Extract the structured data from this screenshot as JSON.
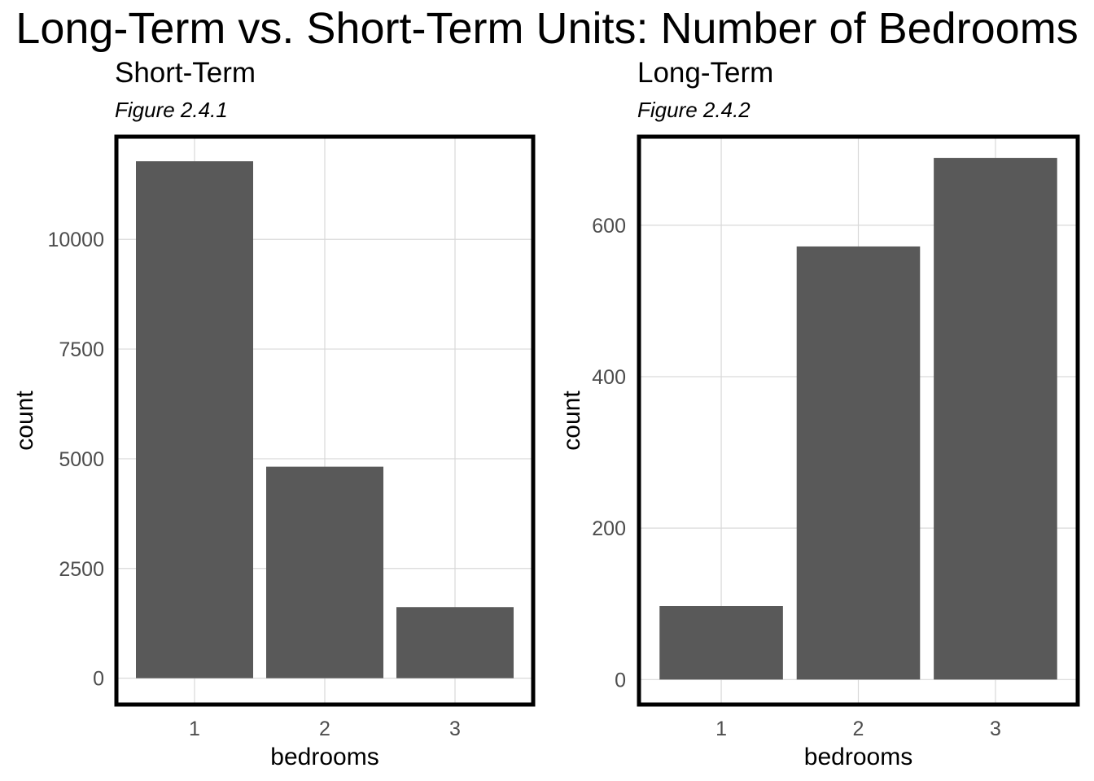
{
  "title": "Long-Term vs. Short-Term Units: Number of Bedrooms",
  "chart_data": [
    {
      "type": "bar",
      "title": "Short-Term",
      "subtitle": "Figure 2.4.1",
      "xlabel": "bedrooms",
      "ylabel": "count",
      "categories": [
        "1",
        "2",
        "3"
      ],
      "values": [
        11780,
        4820,
        1620
      ],
      "ylim": [
        -600,
        12340
      ],
      "yticks": [
        0,
        2500,
        5000,
        7500,
        10000
      ],
      "ytick_labels": [
        "0",
        "2500",
        "5000",
        "7500",
        "10000"
      ],
      "grid": true,
      "bar_color": "#595959"
    },
    {
      "type": "bar",
      "title": "Long-Term",
      "subtitle": "Figure 2.4.2",
      "xlabel": "bedrooms",
      "ylabel": "count",
      "categories": [
        "1",
        "2",
        "3"
      ],
      "values": [
        97,
        572,
        689
      ],
      "ylim": [
        -33,
        717
      ],
      "yticks": [
        0,
        200,
        400,
        600
      ],
      "ytick_labels": [
        "0",
        "200",
        "400",
        "600"
      ],
      "grid": true,
      "bar_color": "#595959"
    }
  ]
}
